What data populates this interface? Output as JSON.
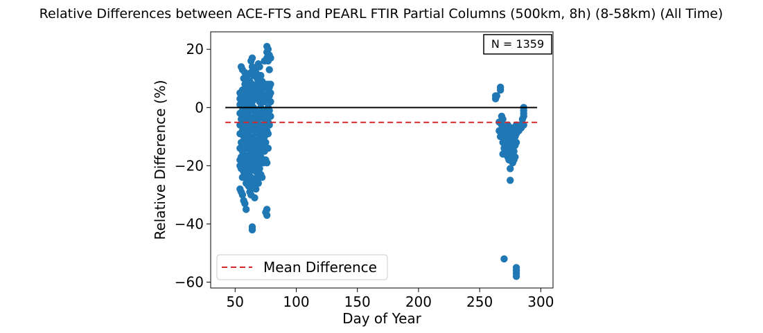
{
  "chart_data": {
    "type": "scatter",
    "title": "Relative Differences between ACE-FTS and PEARL FTIR Partial Columns (500km, 8h) (8-58km) (All Time)",
    "xlabel": "Day of Year",
    "ylabel": "Relative Difference (%)",
    "xlim": [
      30,
      310
    ],
    "ylim": [
      -62,
      26
    ],
    "xticks": [
      {
        "value": 50,
        "label": "50"
      },
      {
        "value": 100,
        "label": "100"
      },
      {
        "value": 150,
        "label": "150"
      },
      {
        "value": 200,
        "label": "200"
      },
      {
        "value": 250,
        "label": "250"
      },
      {
        "value": 300,
        "label": "300"
      }
    ],
    "yticks": [
      {
        "value": 20,
        "label": "20"
      },
      {
        "value": 0,
        "label": "0"
      },
      {
        "value": -20,
        "label": "−20"
      },
      {
        "value": -40,
        "label": "−40"
      },
      {
        "value": -60,
        "label": "−60"
      }
    ],
    "grid": false,
    "point_color": "#1f77b4",
    "zero_line": {
      "value": 0,
      "x_start": 42,
      "x_end": 297,
      "color": "#000000"
    },
    "mean_line": {
      "name": "Mean Difference",
      "value": -5.1,
      "x_start": 42,
      "x_end": 297,
      "color": "#d62728",
      "style": "dashed"
    },
    "legend": {
      "placement": "lower-left",
      "entries": [
        "Mean Difference"
      ]
    },
    "annotation": {
      "text": "N = 1359",
      "placement": "upper-right"
    },
    "series": [
      {
        "points": [
          [
            54,
            5
          ],
          [
            54,
            3
          ],
          [
            54,
            1
          ],
          [
            54,
            -2
          ],
          [
            54,
            -6
          ],
          [
            54,
            -9
          ],
          [
            54,
            -14
          ],
          [
            54,
            -18
          ],
          [
            54,
            -20
          ],
          [
            54,
            -28
          ],
          [
            55,
            14
          ],
          [
            55,
            4
          ],
          [
            55,
            -4
          ],
          [
            55,
            -12
          ],
          [
            55,
            -17
          ],
          [
            55,
            -21
          ],
          [
            55,
            -29
          ],
          [
            56,
            13
          ],
          [
            56,
            6
          ],
          [
            56,
            2
          ],
          [
            56,
            -1
          ],
          [
            56,
            -8
          ],
          [
            56,
            -15
          ],
          [
            56,
            -19
          ],
          [
            56,
            -24
          ],
          [
            56,
            -30
          ],
          [
            57,
            10
          ],
          [
            57,
            5
          ],
          [
            57,
            -3
          ],
          [
            57,
            -10
          ],
          [
            57,
            -16
          ],
          [
            57,
            -22
          ],
          [
            57,
            -32
          ],
          [
            58,
            12
          ],
          [
            58,
            8
          ],
          [
            58,
            0
          ],
          [
            58,
            -5
          ],
          [
            58,
            -11
          ],
          [
            58,
            -18
          ],
          [
            58,
            -23
          ],
          [
            58,
            -33
          ],
          [
            59,
            9
          ],
          [
            59,
            3
          ],
          [
            59,
            -2
          ],
          [
            59,
            -7
          ],
          [
            59,
            -13
          ],
          [
            59,
            -20
          ],
          [
            59,
            -26
          ],
          [
            59,
            -35
          ],
          [
            60,
            11
          ],
          [
            60,
            6
          ],
          [
            60,
            1
          ],
          [
            60,
            -4
          ],
          [
            60,
            -9
          ],
          [
            60,
            -14
          ],
          [
            60,
            -19
          ],
          [
            60,
            -25
          ],
          [
            61,
            7
          ],
          [
            61,
            2
          ],
          [
            61,
            -3
          ],
          [
            61,
            -8
          ],
          [
            61,
            -12
          ],
          [
            61,
            -17
          ],
          [
            61,
            -21
          ],
          [
            61,
            -27
          ],
          [
            62,
            9
          ],
          [
            62,
            4
          ],
          [
            62,
            0
          ],
          [
            62,
            -6
          ],
          [
            62,
            -11
          ],
          [
            62,
            -16
          ],
          [
            62,
            -22
          ],
          [
            62,
            -29
          ],
          [
            63,
            16
          ],
          [
            63,
            12
          ],
          [
            63,
            5
          ],
          [
            63,
            -1
          ],
          [
            63,
            -7
          ],
          [
            63,
            -13
          ],
          [
            63,
            -18
          ],
          [
            63,
            -24
          ],
          [
            63,
            -30
          ],
          [
            64,
            17
          ],
          [
            64,
            14
          ],
          [
            64,
            8
          ],
          [
            64,
            2
          ],
          [
            64,
            -4
          ],
          [
            64,
            -10
          ],
          [
            64,
            -15
          ],
          [
            64,
            -20
          ],
          [
            64,
            -26
          ],
          [
            64,
            -41
          ],
          [
            64,
            -42
          ],
          [
            65,
            11
          ],
          [
            65,
            6
          ],
          [
            65,
            0
          ],
          [
            65,
            -5
          ],
          [
            65,
            -11
          ],
          [
            65,
            -16
          ],
          [
            65,
            -21
          ],
          [
            65,
            -27
          ],
          [
            66,
            13
          ],
          [
            66,
            7
          ],
          [
            66,
            3
          ],
          [
            66,
            -3
          ],
          [
            66,
            -8
          ],
          [
            66,
            -14
          ],
          [
            66,
            -19
          ],
          [
            66,
            -25
          ],
          [
            66,
            -31
          ],
          [
            67,
            12
          ],
          [
            67,
            5
          ],
          [
            67,
            -1
          ],
          [
            67,
            -6
          ],
          [
            67,
            -12
          ],
          [
            67,
            -17
          ],
          [
            67,
            -22
          ],
          [
            67,
            -28
          ],
          [
            68,
            10
          ],
          [
            68,
            4
          ],
          [
            68,
            -2
          ],
          [
            68,
            -8
          ],
          [
            68,
            -13
          ],
          [
            68,
            -18
          ],
          [
            68,
            -24
          ],
          [
            69,
            15
          ],
          [
            69,
            9
          ],
          [
            69,
            3
          ],
          [
            69,
            -4
          ],
          [
            69,
            -9
          ],
          [
            69,
            -15
          ],
          [
            69,
            -20
          ],
          [
            69,
            -26
          ],
          [
            70,
            14
          ],
          [
            70,
            8
          ],
          [
            70,
            2
          ],
          [
            70,
            -3
          ],
          [
            70,
            -10
          ],
          [
            70,
            -16
          ],
          [
            70,
            -21
          ],
          [
            71,
            11
          ],
          [
            71,
            6
          ],
          [
            71,
            0
          ],
          [
            71,
            -6
          ],
          [
            71,
            -11
          ],
          [
            71,
            -17
          ],
          [
            71,
            -23
          ],
          [
            72,
            9
          ],
          [
            72,
            5
          ],
          [
            72,
            -1
          ],
          [
            72,
            -7
          ],
          [
            72,
            -13
          ],
          [
            72,
            -18
          ],
          [
            72,
            -24
          ],
          [
            73,
            8
          ],
          [
            73,
            3
          ],
          [
            73,
            -3
          ],
          [
            73,
            -9
          ],
          [
            73,
            -14
          ],
          [
            73,
            -19
          ],
          [
            74,
            16
          ],
          [
            74,
            7
          ],
          [
            74,
            2
          ],
          [
            74,
            -4
          ],
          [
            74,
            -10
          ],
          [
            74,
            -15
          ],
          [
            75,
            8
          ],
          [
            75,
            4
          ],
          [
            75,
            -1
          ],
          [
            75,
            -6
          ],
          [
            75,
            -12
          ],
          [
            75,
            -18
          ],
          [
            75,
            -36
          ],
          [
            76,
            21
          ],
          [
            76,
            19
          ],
          [
            76,
            17
          ],
          [
            76,
            7
          ],
          [
            76,
            3
          ],
          [
            76,
            -2
          ],
          [
            76,
            -8
          ],
          [
            76,
            -14
          ],
          [
            76,
            -19
          ],
          [
            76,
            -35
          ],
          [
            76,
            -37
          ],
          [
            77,
            20
          ],
          [
            77,
            16
          ],
          [
            77,
            8
          ],
          [
            77,
            5
          ],
          [
            77,
            0
          ],
          [
            77,
            -5
          ],
          [
            77,
            -9
          ],
          [
            77,
            -14
          ],
          [
            78,
            18
          ],
          [
            78,
            13
          ],
          [
            78,
            7
          ],
          [
            78,
            4
          ],
          [
            78,
            -1
          ],
          [
            78,
            -6
          ],
          [
            79,
            17
          ],
          [
            79,
            8
          ],
          [
            79,
            5
          ],
          [
            79,
            2
          ],
          [
            79,
            -3
          ],
          [
            263,
            4
          ],
          [
            263,
            3
          ],
          [
            264,
            4
          ],
          [
            266,
            -5
          ],
          [
            266,
            -8
          ],
          [
            267,
            6
          ],
          [
            267,
            7
          ],
          [
            267,
            -10
          ],
          [
            268,
            -3
          ],
          [
            268,
            -6
          ],
          [
            268,
            -9
          ],
          [
            269,
            -4
          ],
          [
            269,
            -12
          ],
          [
            269,
            -16
          ],
          [
            270,
            -7
          ],
          [
            270,
            -11
          ],
          [
            270,
            -14
          ],
          [
            270,
            -52
          ],
          [
            271,
            -8
          ],
          [
            271,
            -12
          ],
          [
            272,
            -7
          ],
          [
            272,
            -10
          ],
          [
            272,
            -15
          ],
          [
            273,
            -6
          ],
          [
            273,
            -9
          ],
          [
            273,
            -13
          ],
          [
            273,
            -17
          ],
          [
            274,
            -8
          ],
          [
            274,
            -11
          ],
          [
            274,
            -14
          ],
          [
            274,
            -18
          ],
          [
            275,
            -10
          ],
          [
            275,
            -16
          ],
          [
            275,
            -21
          ],
          [
            275,
            -25
          ],
          [
            276,
            -7
          ],
          [
            276,
            -12
          ],
          [
            276,
            -17
          ],
          [
            277,
            -9
          ],
          [
            277,
            -14
          ],
          [
            277,
            -19
          ],
          [
            278,
            -8
          ],
          [
            278,
            -15
          ],
          [
            278,
            -18
          ],
          [
            279,
            -7
          ],
          [
            279,
            -10
          ],
          [
            279,
            -13
          ],
          [
            279,
            -17
          ],
          [
            280,
            -6
          ],
          [
            280,
            -9
          ],
          [
            280,
            -12
          ],
          [
            280,
            -55
          ],
          [
            280,
            -56
          ],
          [
            280,
            -57
          ],
          [
            280,
            -58
          ],
          [
            281,
            -7
          ],
          [
            282,
            -8
          ],
          [
            283,
            -6
          ],
          [
            284,
            -7
          ],
          [
            285,
            -6
          ],
          [
            285,
            -4
          ],
          [
            286,
            0
          ],
          [
            286,
            -1
          ],
          [
            286,
            -2
          ],
          [
            286,
            -3
          ],
          [
            286,
            -6
          ]
        ]
      }
    ]
  }
}
